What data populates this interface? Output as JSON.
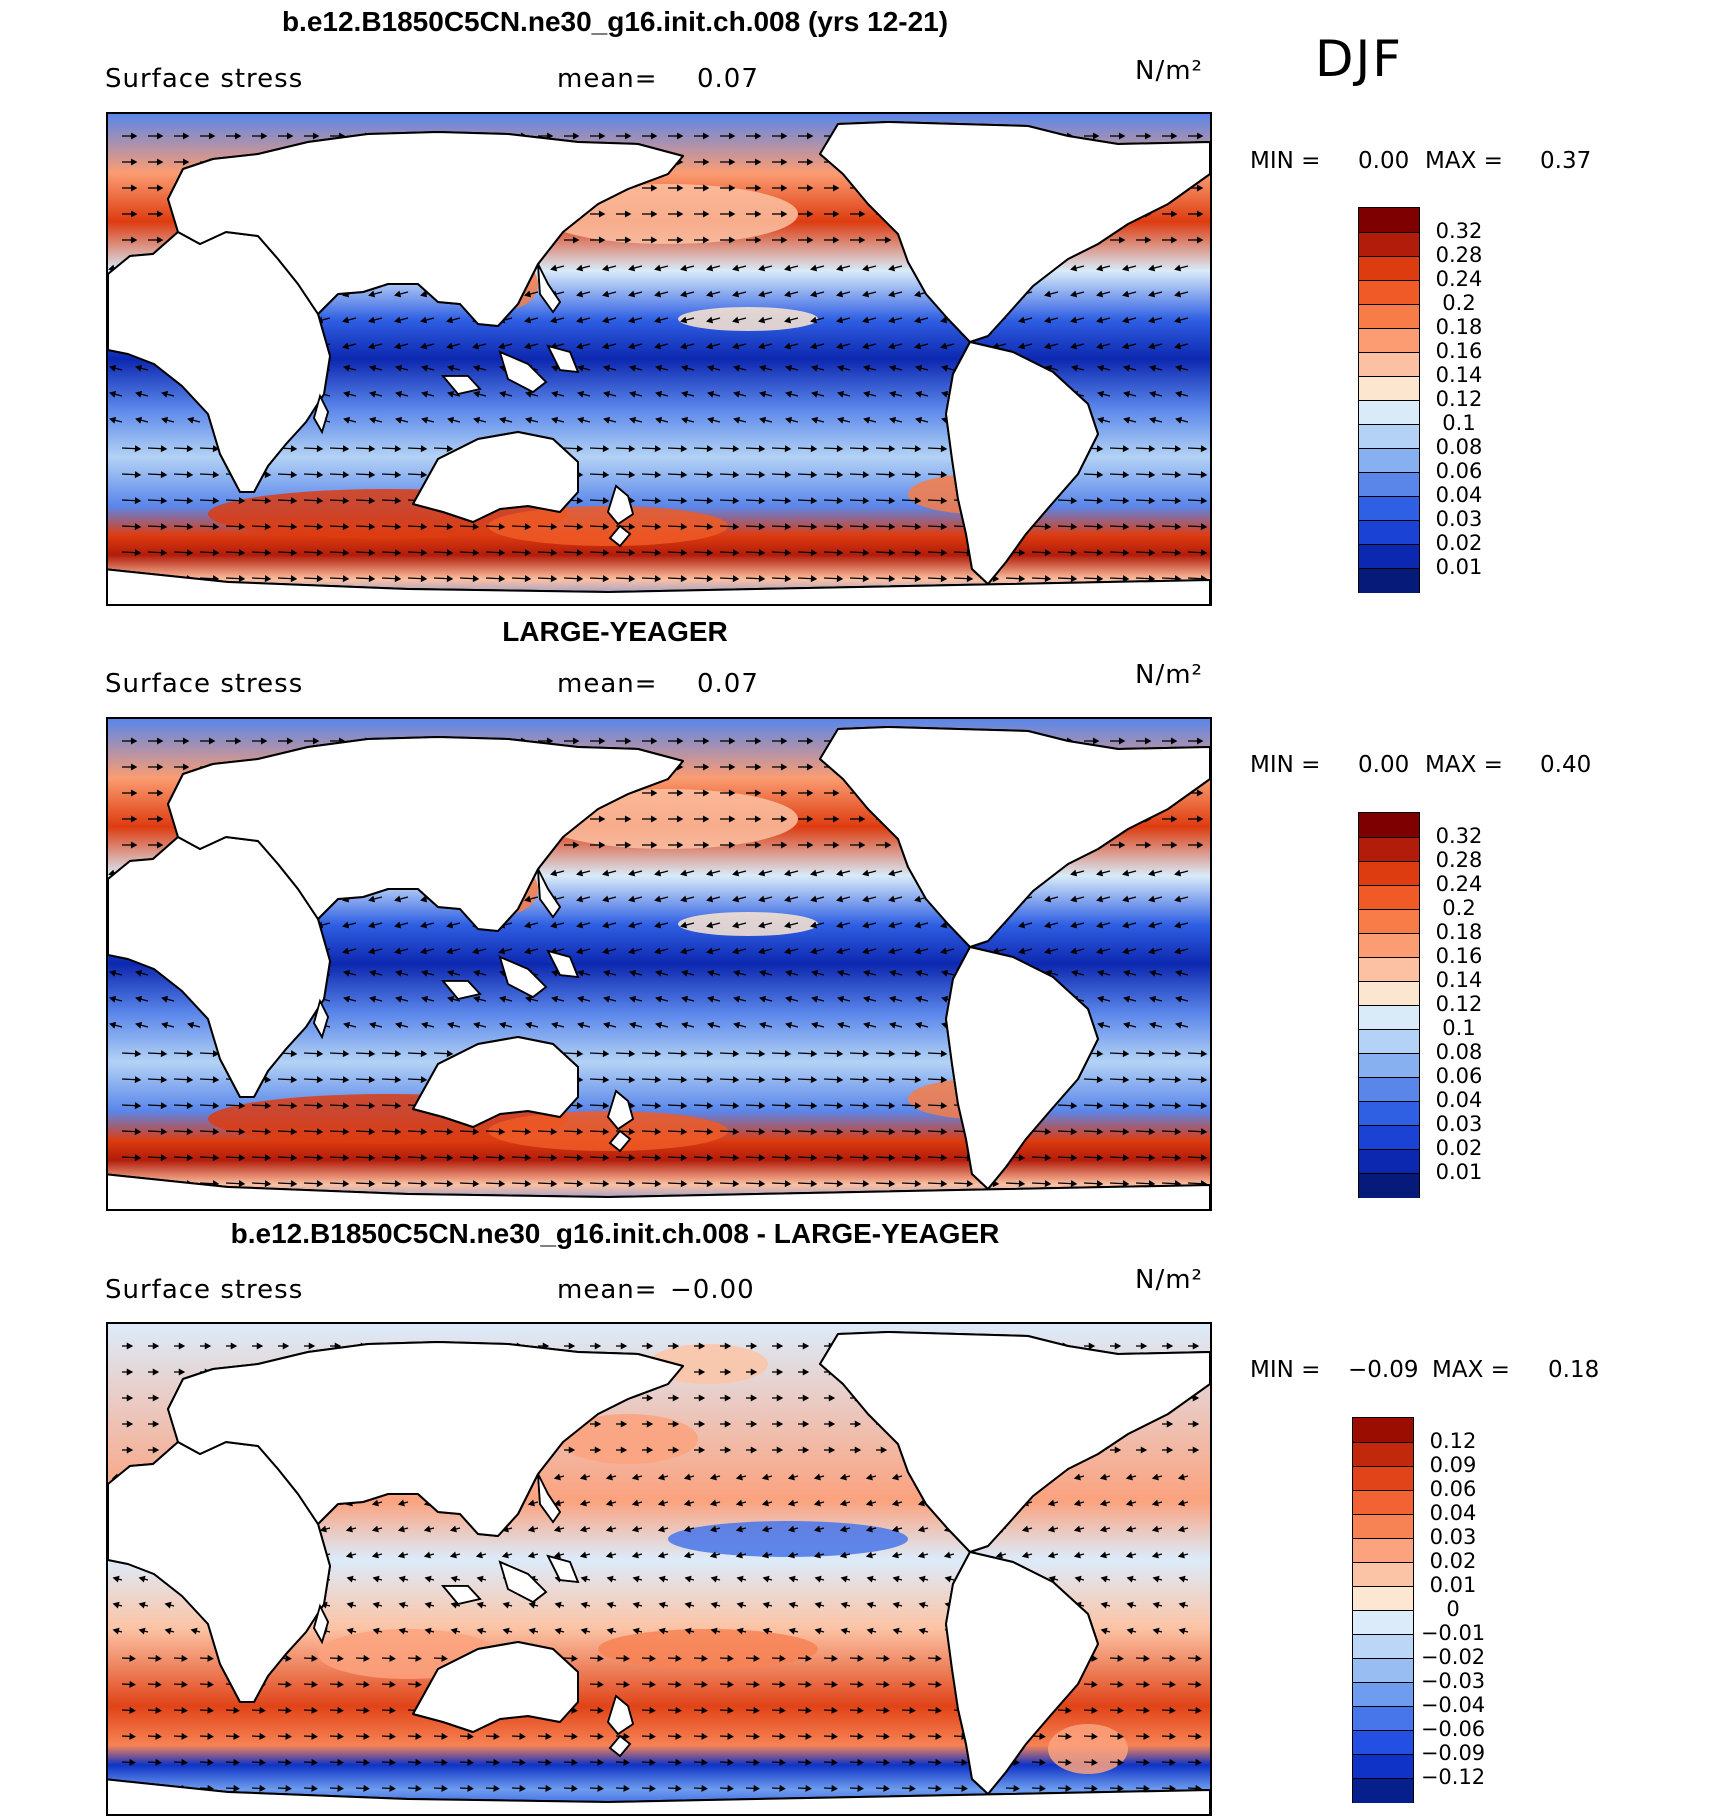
{
  "season": "DJF",
  "chart_data": [
    {
      "type": "heatmap",
      "title": "b.e12.B1850C5CN.ne30_g16.init.ch.008 (yrs 12-21)",
      "variable": "Surface stress",
      "mean_label": "mean=",
      "mean_value": "0.07",
      "units": "N/m²",
      "min_label": "MIN =",
      "min_value": "0.00",
      "max_label": "MAX =",
      "max_value": "0.37",
      "colorbar_levels": [
        "0.32",
        "0.28",
        "0.24",
        "0.2",
        "0.18",
        "0.16",
        "0.14",
        "0.12",
        "0.1",
        "0.08",
        "0.06",
        "0.04",
        "0.03",
        "0.02",
        "0.01"
      ],
      "colorbar_colors": [
        "#7f0000",
        "#b21c0a",
        "#dd3c10",
        "#ef5a26",
        "#f77c47",
        "#fb9c72",
        "#fcc1a2",
        "#fde6d0",
        "#d9ebf9",
        "#b3d2f5",
        "#86b0ef",
        "#5a86ea",
        "#2f5fe3",
        "#1a42d4",
        "#0d28b0",
        "#061a7a"
      ]
    },
    {
      "type": "heatmap",
      "title": "LARGE-YEAGER",
      "variable": "Surface stress",
      "mean_label": "mean=",
      "mean_value": "0.07",
      "units": "N/m²",
      "min_label": "MIN =",
      "min_value": "0.00",
      "max_label": "MAX =",
      "max_value": "0.40",
      "colorbar_levels": [
        "0.32",
        "0.28",
        "0.24",
        "0.2",
        "0.18",
        "0.16",
        "0.14",
        "0.12",
        "0.1",
        "0.08",
        "0.06",
        "0.04",
        "0.03",
        "0.02",
        "0.01"
      ],
      "colorbar_colors": [
        "#7f0000",
        "#b21c0a",
        "#dd3c10",
        "#ef5a26",
        "#f77c47",
        "#fb9c72",
        "#fcc1a2",
        "#fde6d0",
        "#d9ebf9",
        "#b3d2f5",
        "#86b0ef",
        "#5a86ea",
        "#2f5fe3",
        "#1a42d4",
        "#0d28b0",
        "#061a7a"
      ]
    },
    {
      "type": "heatmap",
      "title": "b.e12.B1850C5CN.ne30_g16.init.ch.008 - LARGE-YEAGER",
      "variable": "Surface stress",
      "mean_label": "mean=",
      "mean_value": "−0.00",
      "units": "N/m²",
      "min_label": "MIN =",
      "min_value": "−0.09",
      "max_label": "MAX =",
      "max_value": "0.18",
      "colorbar_levels": [
        "0.12",
        "0.09",
        "0.06",
        "0.04",
        "0.03",
        "0.02",
        "0.01",
        "0",
        "−0.01",
        "−0.02",
        "−0.03",
        "−0.04",
        "−0.06",
        "−0.09",
        "−0.12"
      ],
      "colorbar_colors": [
        "#9b0d00",
        "#c2280c",
        "#e04418",
        "#f26232",
        "#f78355",
        "#fba27e",
        "#fcc4a6",
        "#fde6d2",
        "#dcebfa",
        "#bcd6f6",
        "#98bdf2",
        "#6e9cee",
        "#4676ea",
        "#2350e2",
        "#0f33c6",
        "#071f8c"
      ]
    }
  ]
}
